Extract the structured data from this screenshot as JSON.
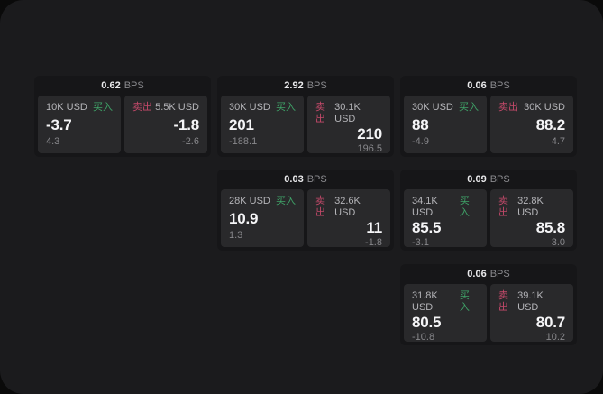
{
  "labels": {
    "buy": "买入",
    "sell": "卖出",
    "bps_unit": "BPS"
  },
  "colors": {
    "buy_green": "#3fa368",
    "sell_red": "#c4496a",
    "window_bg": "#1b1b1d",
    "card_bg": "#161618",
    "panel_bg": "#29292b"
  },
  "cards": [
    {
      "bps": "0.62",
      "buy": {
        "amount": "10K USD",
        "price": "-3.7",
        "sub_value": "4.3"
      },
      "sell": {
        "amount": "5.5K USD",
        "price": "-1.8",
        "sub_value": "-2.6"
      }
    },
    {
      "bps": "2.92",
      "buy": {
        "amount": "30K USD",
        "price": "201",
        "sub_value": "-188.1"
      },
      "sell": {
        "amount": "30.1K USD",
        "price": "210",
        "sub_value": "196.5"
      }
    },
    {
      "bps": "0.06",
      "buy": {
        "amount": "30K USD",
        "price": "88",
        "sub_value": "-4.9"
      },
      "sell": {
        "amount": "30K USD",
        "price": "88.2",
        "sub_value": "4.7"
      }
    },
    {
      "bps": "0.03",
      "buy": {
        "amount": "28K USD",
        "price": "10.9",
        "sub_value": "1.3"
      },
      "sell": {
        "amount": "32.6K USD",
        "price": "11",
        "sub_value": "-1.8"
      }
    },
    {
      "bps": "0.09",
      "buy": {
        "amount": "34.1K USD",
        "price": "85.5",
        "sub_value": "-3.1"
      },
      "sell": {
        "amount": "32.8K USD",
        "price": "85.8",
        "sub_value": "3.0"
      }
    },
    {
      "bps": "0.06",
      "buy": {
        "amount": "31.8K USD",
        "price": "80.5",
        "sub_value": "-10.8"
      },
      "sell": {
        "amount": "39.1K USD",
        "price": "80.7",
        "sub_value": "10.2"
      }
    }
  ]
}
